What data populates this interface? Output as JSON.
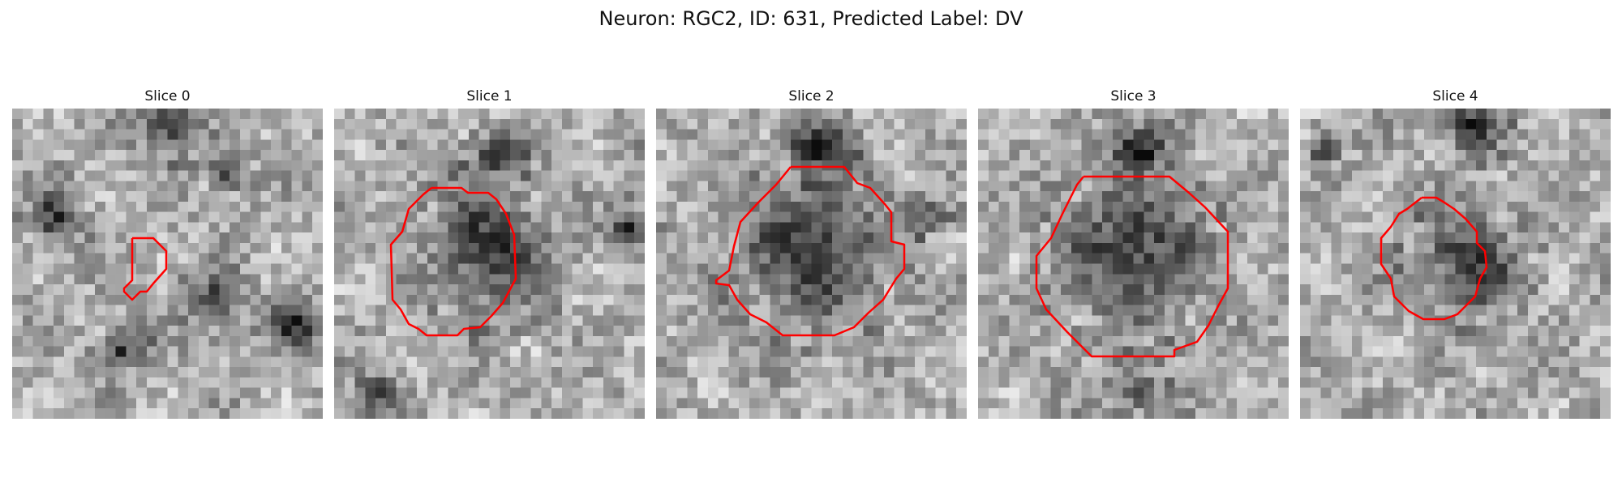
{
  "figure": {
    "suptitle": "Neuron: RGC2, ID: 631, Predicted Label: DV",
    "contour_color": "#ff0000",
    "colormap": "gray"
  },
  "panels": [
    {
      "title": "Slice 0",
      "contour": "small-blob"
    },
    {
      "title": "Slice 1",
      "contour": "large-blob"
    },
    {
      "title": "Slice 2",
      "contour": "large-blob"
    },
    {
      "title": "Slice 3",
      "contour": "large-blob"
    },
    {
      "title": "Slice 4",
      "contour": "medium-blob"
    }
  ]
}
